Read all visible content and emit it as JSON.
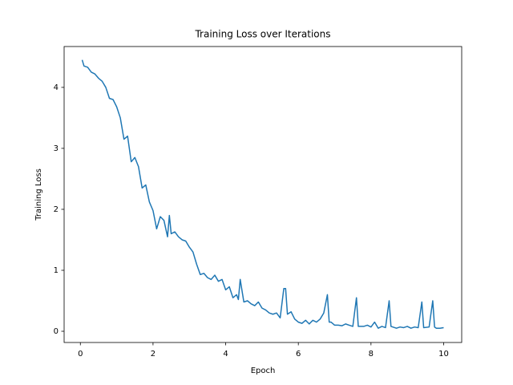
{
  "chart_data": {
    "type": "line",
    "title": "Training Loss over Iterations",
    "x_label": "Epoch",
    "y_label": "Training Loss",
    "x": [
      0.05,
      0.1,
      0.2,
      0.3,
      0.4,
      0.5,
      0.6,
      0.7,
      0.8,
      0.9,
      1.0,
      1.1,
      1.2,
      1.3,
      1.4,
      1.5,
      1.6,
      1.7,
      1.8,
      1.9,
      2.0,
      2.1,
      2.2,
      2.3,
      2.4,
      2.45,
      2.5,
      2.6,
      2.7,
      2.8,
      2.9,
      3.0,
      3.1,
      3.2,
      3.3,
      3.4,
      3.5,
      3.6,
      3.7,
      3.8,
      3.9,
      4.0,
      4.1,
      4.2,
      4.3,
      4.35,
      4.4,
      4.5,
      4.6,
      4.7,
      4.8,
      4.9,
      5.0,
      5.1,
      5.2,
      5.3,
      5.4,
      5.5,
      5.6,
      5.65,
      5.7,
      5.8,
      5.9,
      6.0,
      6.1,
      6.2,
      6.3,
      6.4,
      6.5,
      6.6,
      6.7,
      6.8,
      6.85,
      6.9,
      7.0,
      7.1,
      7.2,
      7.3,
      7.4,
      7.5,
      7.6,
      7.65,
      7.8,
      7.9,
      8.0,
      8.1,
      8.2,
      8.3,
      8.4,
      8.5,
      8.55,
      8.7,
      8.8,
      8.9,
      9.0,
      9.1,
      9.2,
      9.3,
      9.4,
      9.45,
      9.6,
      9.7,
      9.75,
      9.8,
      9.9,
      10.0
    ],
    "series": [
      {
        "name": "Training Loss",
        "color": "#1f77b4",
        "values": [
          4.45,
          4.35,
          4.33,
          4.25,
          4.22,
          4.15,
          4.1,
          4.0,
          3.82,
          3.8,
          3.68,
          3.5,
          3.15,
          3.2,
          2.78,
          2.85,
          2.7,
          2.35,
          2.4,
          2.12,
          1.98,
          1.68,
          1.88,
          1.82,
          1.55,
          1.9,
          1.6,
          1.63,
          1.55,
          1.5,
          1.48,
          1.38,
          1.3,
          1.1,
          0.93,
          0.95,
          0.88,
          0.85,
          0.92,
          0.82,
          0.85,
          0.68,
          0.73,
          0.55,
          0.6,
          0.52,
          0.85,
          0.48,
          0.5,
          0.45,
          0.42,
          0.48,
          0.38,
          0.35,
          0.3,
          0.28,
          0.3,
          0.22,
          0.7,
          0.7,
          0.28,
          0.32,
          0.2,
          0.15,
          0.13,
          0.18,
          0.12,
          0.18,
          0.15,
          0.2,
          0.3,
          0.6,
          0.15,
          0.15,
          0.1,
          0.1,
          0.09,
          0.12,
          0.1,
          0.08,
          0.55,
          0.08,
          0.08,
          0.1,
          0.07,
          0.15,
          0.05,
          0.08,
          0.06,
          0.5,
          0.08,
          0.05,
          0.07,
          0.06,
          0.08,
          0.05,
          0.07,
          0.06,
          0.48,
          0.06,
          0.07,
          0.5,
          0.07,
          0.05,
          0.05,
          0.06
        ]
      }
    ],
    "xlim": [
      -0.447,
      10.497
    ],
    "ylim": [
      -0.184,
      4.67
    ],
    "xticks": [
      0,
      2,
      4,
      6,
      8,
      10
    ],
    "yticks": [
      0,
      1,
      2,
      3,
      4
    ],
    "grid": false
  }
}
